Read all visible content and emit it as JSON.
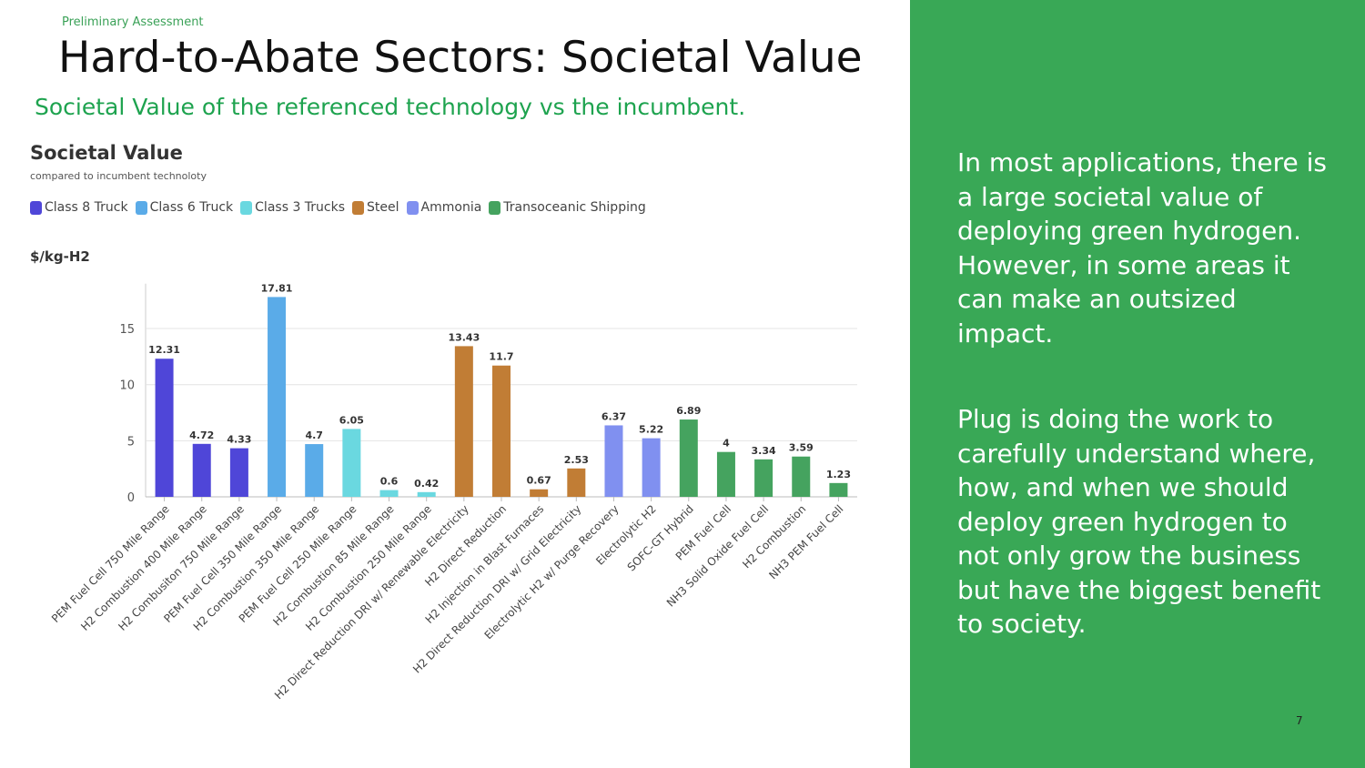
{
  "slide": {
    "eyebrow": "Preliminary Assessment",
    "title": "Hard-to-Abate Sectors: Societal Value",
    "subtitle": "Societal Value of the referenced technology vs the incumbent."
  },
  "legend": [
    {
      "label": "Class 8  Truck",
      "color": "#4f46d8"
    },
    {
      "label": "Class 6 Truck",
      "color": "#5aabe8"
    },
    {
      "label": "Class 3 Trucks",
      "color": "#6ad8e0"
    },
    {
      "label": "Steel",
      "color": "#c17d35"
    },
    {
      "label": "Ammonia",
      "color": "#8090f0"
    },
    {
      "label": "Transoceanic Shipping",
      "color": "#45a35f"
    }
  ],
  "chart_data": {
    "type": "bar",
    "title": "Societal Value",
    "subtitle": "compared to incumbent technoloty",
    "ylabel": "$/kg-H2",
    "ylim": [
      0,
      19
    ],
    "yticks": [
      0,
      5,
      10,
      15
    ],
    "grid": true,
    "legend_position": "top-left",
    "categories": [
      "PEM Fuel Cell 750 Mile Range",
      "H2 Combustion 400 Mile Range",
      "H2 Combusiton 750 Mile Range",
      "PEM Fuel Cell 350 Mile Range",
      "H2 Combustion 350 Mile Range",
      "PEM Fuel Cell 250 Mile Range",
      "H2 Combustion 85 Mile Range",
      "H2 Combustion 250 Mile Range",
      "H2 Direct Reduction DRI w/ Renewable Electricity",
      "H2 Direct Reduction",
      "H2 Injection in Blast Furnaces",
      "H2 Direct Reduction DRI w/ Grid Electricity",
      "Electrolytic H2 w/ Purge Recovery",
      "Electrolytic H2",
      "SOFC-GT Hybrid",
      "PEM Fuel Cell",
      "NH3 Solid Oxide Fuel Cell",
      "H2 Combustion",
      "NH3 PEM Fuel Cell"
    ],
    "values": [
      12.31,
      4.72,
      4.33,
      17.81,
      4.7,
      6.05,
      0.6,
      0.42,
      13.43,
      11.7,
      0.67,
      2.53,
      6.37,
      5.22,
      6.89,
      4,
      3.34,
      3.59,
      1.23
    ],
    "value_labels": [
      "12.31",
      "4.72",
      "4.33",
      "17.81",
      "4.7",
      "6.05",
      "0.6",
      "0.42",
      "13.43",
      "11.7",
      "0.67",
      "2.53",
      "6.37",
      "5.22",
      "6.89",
      "4",
      "3.34",
      "3.59",
      "1.23"
    ],
    "series_index": [
      0,
      0,
      0,
      1,
      1,
      2,
      2,
      2,
      3,
      3,
      3,
      3,
      4,
      4,
      5,
      5,
      5,
      5,
      5
    ]
  },
  "panel": {
    "para1": "In most applications, there is a large societal value of deploying green hydrogen.  However, in some areas it can make an outsized impact.",
    "para2": "Plug is doing the work to carefully understand where, how, and when we should deploy green hydrogen to not only grow the business but have the biggest benefit to society.",
    "page_number": "7"
  }
}
